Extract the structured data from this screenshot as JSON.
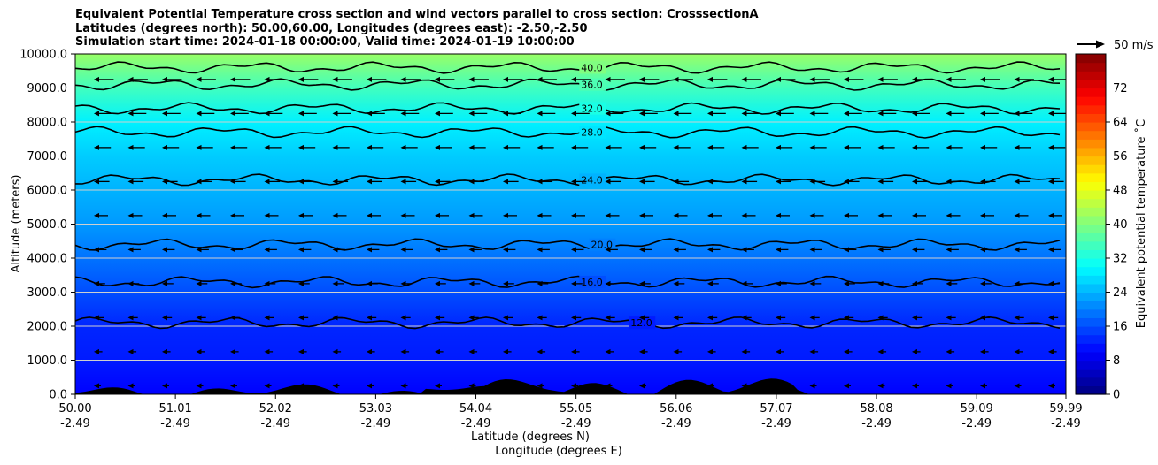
{
  "title_lines": [
    "Equivalent Potential Temperature cross section and wind vectors parallel to cross section: CrosssectionA",
    "Latitudes (degrees north): 50.00,60.00, Longitudes (degrees east): -2.50,-2.50",
    "Simulation start time: 2024-01-18 00:00:00, Valid time: 2024-01-19 10:00:00"
  ],
  "chart_data": {
    "type": "heatmap",
    "title": "Equivalent Potential Temperature cross section and wind vectors parallel to cross section: CrosssectionA",
    "xlabel": "Latitude (degrees N)",
    "xlabel2": "Longitude (degrees E)",
    "ylabel": "Altitude (meters)",
    "x_ticks": [
      {
        "lat": "50.00",
        "lon": "-2.49"
      },
      {
        "lat": "51.01",
        "lon": "-2.49"
      },
      {
        "lat": "52.02",
        "lon": "-2.49"
      },
      {
        "lat": "53.03",
        "lon": "-2.49"
      },
      {
        "lat": "54.04",
        "lon": "-2.49"
      },
      {
        "lat": "55.05",
        "lon": "-2.49"
      },
      {
        "lat": "56.06",
        "lon": "-2.49"
      },
      {
        "lat": "57.07",
        "lon": "-2.49"
      },
      {
        "lat": "58.08",
        "lon": "-2.49"
      },
      {
        "lat": "59.09",
        "lon": "-2.49"
      },
      {
        "lat": "59.99",
        "lon": "-2.49"
      }
    ],
    "xlim": [
      50.0,
      59.99
    ],
    "y_ticks": [
      "0.0",
      "1000.0",
      "2000.0",
      "3000.0",
      "4000.0",
      "5000.0",
      "6000.0",
      "7000.0",
      "8000.0",
      "9000.0",
      "10000.0"
    ],
    "ylim": [
      0,
      10000
    ],
    "grid": "horizontal",
    "colorbar": {
      "label": "Equivalent potential temperature ˚C",
      "range": [
        0,
        80
      ],
      "ticks": [
        "0",
        "8",
        "16",
        "24",
        "32",
        "40",
        "48",
        "56",
        "64",
        "72"
      ],
      "colormap": "jet"
    },
    "quiver_key": {
      "label": "50 m/s"
    },
    "contours": [
      {
        "value": 12.0,
        "label": "12.0",
        "lat": 55.6,
        "alt": 2100
      },
      {
        "value": 16.0,
        "label": "16.0",
        "lat": 55.1,
        "alt": 3300
      },
      {
        "value": 20.0,
        "label": "20.0",
        "lat": 55.2,
        "alt": 4400
      },
      {
        "value": 24.0,
        "label": "24.0",
        "lat": 55.1,
        "alt": 6300
      },
      {
        "value": 28.0,
        "label": "28.0",
        "lat": 55.1,
        "alt": 7700
      },
      {
        "value": 32.0,
        "label": "32.0",
        "lat": 55.1,
        "alt": 8400
      },
      {
        "value": 36.0,
        "label": "36.0",
        "lat": 55.1,
        "alt": 9100
      },
      {
        "value": 40.0,
        "label": "40.0",
        "lat": 55.1,
        "alt": 9600
      }
    ],
    "theta_e_profile": [
      {
        "alt": 0,
        "value": 10
      },
      {
        "alt": 1000,
        "value": 12
      },
      {
        "alt": 2000,
        "value": 13
      },
      {
        "alt": 3000,
        "value": 16
      },
      {
        "alt": 4000,
        "value": 19
      },
      {
        "alt": 5000,
        "value": 22
      },
      {
        "alt": 6000,
        "value": 24
      },
      {
        "alt": 7000,
        "value": 26
      },
      {
        "alt": 8000,
        "value": 29
      },
      {
        "alt": 9000,
        "value": 35
      },
      {
        "alt": 10000,
        "value": 42
      }
    ]
  }
}
